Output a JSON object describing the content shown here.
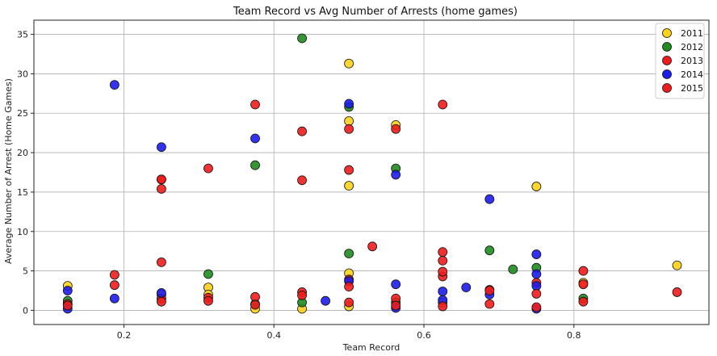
{
  "chart_data": {
    "type": "scatter",
    "title": "Team Record vs Avg Number of Arrests (home games)",
    "xlabel": "Team Record",
    "ylabel": "Average Number of Arrest (Home Games)",
    "xlim": [
      0.08,
      0.98
    ],
    "ylim": [
      -1.8,
      36.8
    ],
    "xticks": [
      0.2,
      0.4,
      0.6,
      0.8
    ],
    "yticks": [
      0,
      5,
      10,
      15,
      20,
      25,
      30,
      35
    ],
    "grid": true,
    "legend_position": "top-right",
    "series": [
      {
        "name": "2011",
        "color": "#ffd11a",
        "points": [
          [
            0.125,
            3.1
          ],
          [
            0.25,
            2.0
          ],
          [
            0.3125,
            2.9
          ],
          [
            0.3125,
            2.0
          ],
          [
            0.375,
            0.2
          ],
          [
            0.4375,
            0.2
          ],
          [
            0.5,
            31.3
          ],
          [
            0.5,
            24.0
          ],
          [
            0.5,
            15.8
          ],
          [
            0.5,
            4.7
          ],
          [
            0.5,
            0.5
          ],
          [
            0.5625,
            23.5
          ],
          [
            0.625,
            1.0
          ],
          [
            0.75,
            15.7
          ],
          [
            0.8125,
            3.5
          ],
          [
            0.9375,
            5.7
          ]
        ]
      },
      {
        "name": "2012",
        "color": "#1e8c1e",
        "points": [
          [
            0.125,
            1.2
          ],
          [
            0.3125,
            4.6
          ],
          [
            0.375,
            18.4
          ],
          [
            0.375,
            0.8
          ],
          [
            0.4375,
            34.5
          ],
          [
            0.4375,
            1.0
          ],
          [
            0.5,
            25.8
          ],
          [
            0.5,
            7.2
          ],
          [
            0.5625,
            18.0
          ],
          [
            0.5625,
            1.0
          ],
          [
            0.6875,
            7.6
          ],
          [
            0.71875,
            5.2
          ],
          [
            0.75,
            5.4
          ],
          [
            0.8125,
            1.5
          ]
        ]
      },
      {
        "name": "2013",
        "color": "#ee1c1c",
        "points": [
          [
            0.125,
            0.8
          ],
          [
            0.1875,
            4.5
          ],
          [
            0.25,
            16.6
          ],
          [
            0.25,
            1.5
          ],
          [
            0.3125,
            1.6
          ],
          [
            0.375,
            26.1
          ],
          [
            0.375,
            1.7
          ],
          [
            0.4375,
            22.7
          ],
          [
            0.4375,
            16.5
          ],
          [
            0.4375,
            2.3
          ],
          [
            0.5,
            17.8
          ],
          [
            0.5,
            3.9
          ],
          [
            0.53125,
            8.1
          ],
          [
            0.5625,
            1.5
          ],
          [
            0.625,
            26.1
          ],
          [
            0.625,
            6.3
          ],
          [
            0.625,
            4.3
          ],
          [
            0.6875,
            2.6
          ],
          [
            0.75,
            3.5
          ],
          [
            0.8125,
            5.0
          ],
          [
            0.8125,
            1.1
          ],
          [
            0.9375,
            2.3
          ]
        ]
      },
      {
        "name": "2014",
        "color": "#1c1ced",
        "points": [
          [
            0.125,
            2.5
          ],
          [
            0.125,
            0.2
          ],
          [
            0.1875,
            28.6
          ],
          [
            0.1875,
            1.5
          ],
          [
            0.25,
            20.7
          ],
          [
            0.25,
            2.2
          ],
          [
            0.375,
            21.8
          ],
          [
            0.46875,
            1.2
          ],
          [
            0.5,
            26.2
          ],
          [
            0.5,
            3.7
          ],
          [
            0.5625,
            17.2
          ],
          [
            0.5625,
            3.3
          ],
          [
            0.5625,
            0.3
          ],
          [
            0.625,
            2.4
          ],
          [
            0.625,
            1.3
          ],
          [
            0.65625,
            2.9
          ],
          [
            0.6875,
            14.1
          ],
          [
            0.6875,
            2.0
          ],
          [
            0.75,
            7.1
          ],
          [
            0.75,
            4.6
          ],
          [
            0.75,
            3.1
          ],
          [
            0.75,
            0.2
          ]
        ]
      },
      {
        "name": "2015",
        "color": "#ee1c1c",
        "points": [
          [
            0.125,
            0.6
          ],
          [
            0.1875,
            3.2
          ],
          [
            0.25,
            16.6
          ],
          [
            0.25,
            15.4
          ],
          [
            0.25,
            6.1
          ],
          [
            0.25,
            1.1
          ],
          [
            0.3125,
            18.0
          ],
          [
            0.3125,
            1.2
          ],
          [
            0.375,
            0.7
          ],
          [
            0.4375,
            1.9
          ],
          [
            0.5,
            23.0
          ],
          [
            0.5,
            3.0
          ],
          [
            0.5,
            1.0
          ],
          [
            0.5625,
            23.0
          ],
          [
            0.5625,
            0.6
          ],
          [
            0.625,
            7.4
          ],
          [
            0.625,
            4.9
          ],
          [
            0.625,
            0.5
          ],
          [
            0.6875,
            2.5
          ],
          [
            0.6875,
            0.8
          ],
          [
            0.75,
            2.1
          ],
          [
            0.75,
            0.4
          ],
          [
            0.8125,
            3.3
          ]
        ]
      }
    ]
  }
}
